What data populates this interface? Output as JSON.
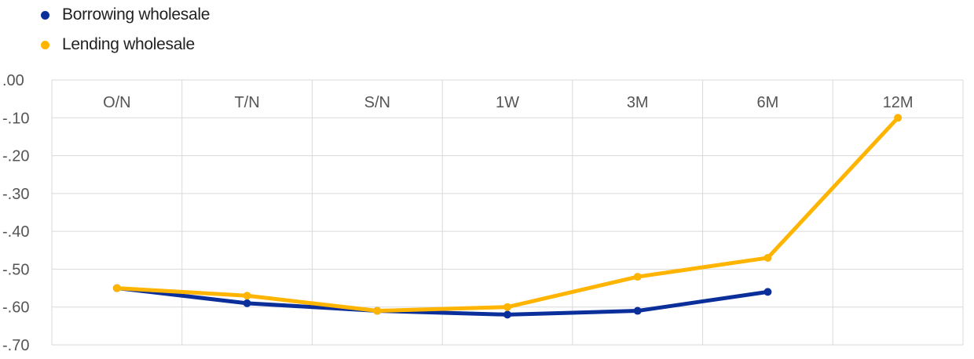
{
  "chart_data": {
    "type": "line",
    "categories": [
      "O/N",
      "T/N",
      "S/N",
      "1W",
      "3M",
      "6M",
      "12M"
    ],
    "series": [
      {
        "name": "Borrowing wholesale",
        "color": "#0a2e9a",
        "values": [
          -0.55,
          -0.59,
          -0.61,
          -0.62,
          -0.61,
          -0.56,
          null
        ]
      },
      {
        "name": "Lending wholesale",
        "color": "#ffb400",
        "values": [
          -0.55,
          -0.57,
          -0.61,
          -0.6,
          -0.52,
          -0.47,
          -0.1
        ]
      }
    ],
    "ylim": [
      -0.7,
      0.0
    ],
    "yticks": [
      0.0,
      -0.1,
      -0.2,
      -0.3,
      -0.4,
      -0.5,
      -0.6,
      -0.7
    ],
    "ytick_labels": [
      ".00",
      "-.10",
      "-.20",
      "-.30",
      "-.40",
      "-.50",
      "-.60",
      "-.70"
    ],
    "xlabel": "",
    "ylabel": "",
    "grid": true,
    "legend_position": "top-left",
    "category_label_position": "top"
  }
}
